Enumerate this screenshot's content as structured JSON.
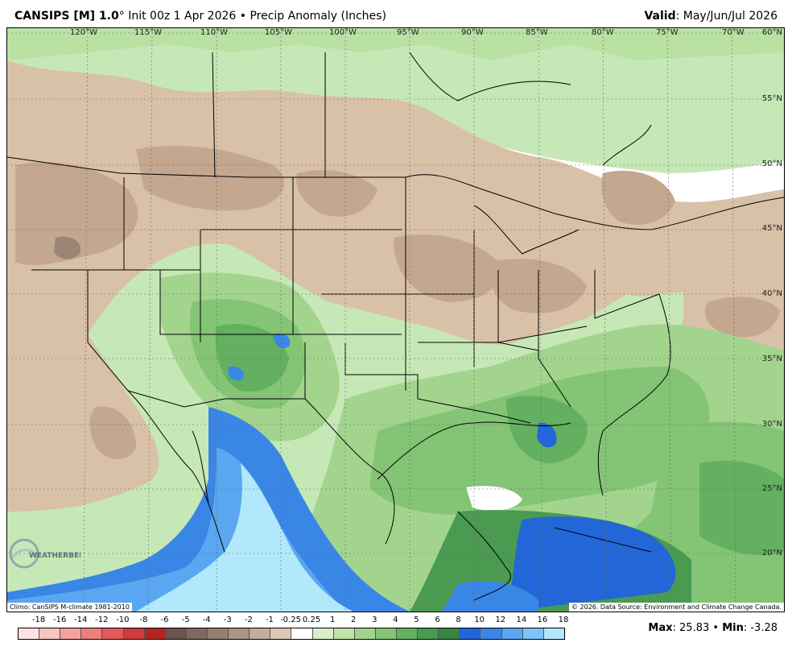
{
  "header": {
    "model": "CANSIPS [M] 1.0",
    "degree": "°",
    "run": " Init 00z 1 Apr 2026 • Precip Anomaly (Inches)",
    "valid_label": "Valid",
    "valid_value": ": May/Jun/Jul 2026"
  },
  "map": {
    "lon_labels": [
      "120°W",
      "115°W",
      "110°W",
      "105°W",
      "100°W",
      "95°W",
      "90°W",
      "85°W",
      "80°W",
      "75°W",
      "70°W"
    ],
    "lat_labels": [
      "60°N",
      "55°N",
      "50°N",
      "45°N",
      "40°N",
      "35°N",
      "30°N",
      "25°N",
      "20°N"
    ],
    "climo_note": "Climo: CanSIPS M-climate 1981-2010",
    "copyright": "© 2026. Data Source: Environment and Climate Change Canada.",
    "logo_text": "WEATHERBELL"
  },
  "colorbar": {
    "labels": [
      "-18",
      "-16",
      "-14",
      "-12",
      "-10",
      "-8",
      "-6",
      "-5",
      "-4",
      "-3",
      "-2",
      "-1",
      "-0.25",
      "0.25",
      "1",
      "2",
      "3",
      "4",
      "5",
      "6",
      "8",
      "10",
      "12",
      "14",
      "16",
      "18"
    ],
    "colors": [
      "#fde3e3",
      "#f9c4c4",
      "#f4a0a0",
      "#ec7e7e",
      "#e05a5a",
      "#cc3d3d",
      "#b22525",
      "#6b5550",
      "#7e6a62",
      "#957f73",
      "#ab9585",
      "#c3ad9b",
      "#dcc8b4",
      "#ffffff",
      "#d7eec9",
      "#bfe3ab",
      "#a3d48e",
      "#84c475",
      "#63b061",
      "#4a9a52",
      "#3a8446",
      "#2266d8",
      "#3a86e6",
      "#5aa6f0",
      "#7fc4f6",
      "#b2e8fb"
    ]
  },
  "stats": {
    "max_label": "Max",
    "max_value": ": 25.83 • ",
    "min_label": "Min",
    "min_value": ": -3.28"
  }
}
